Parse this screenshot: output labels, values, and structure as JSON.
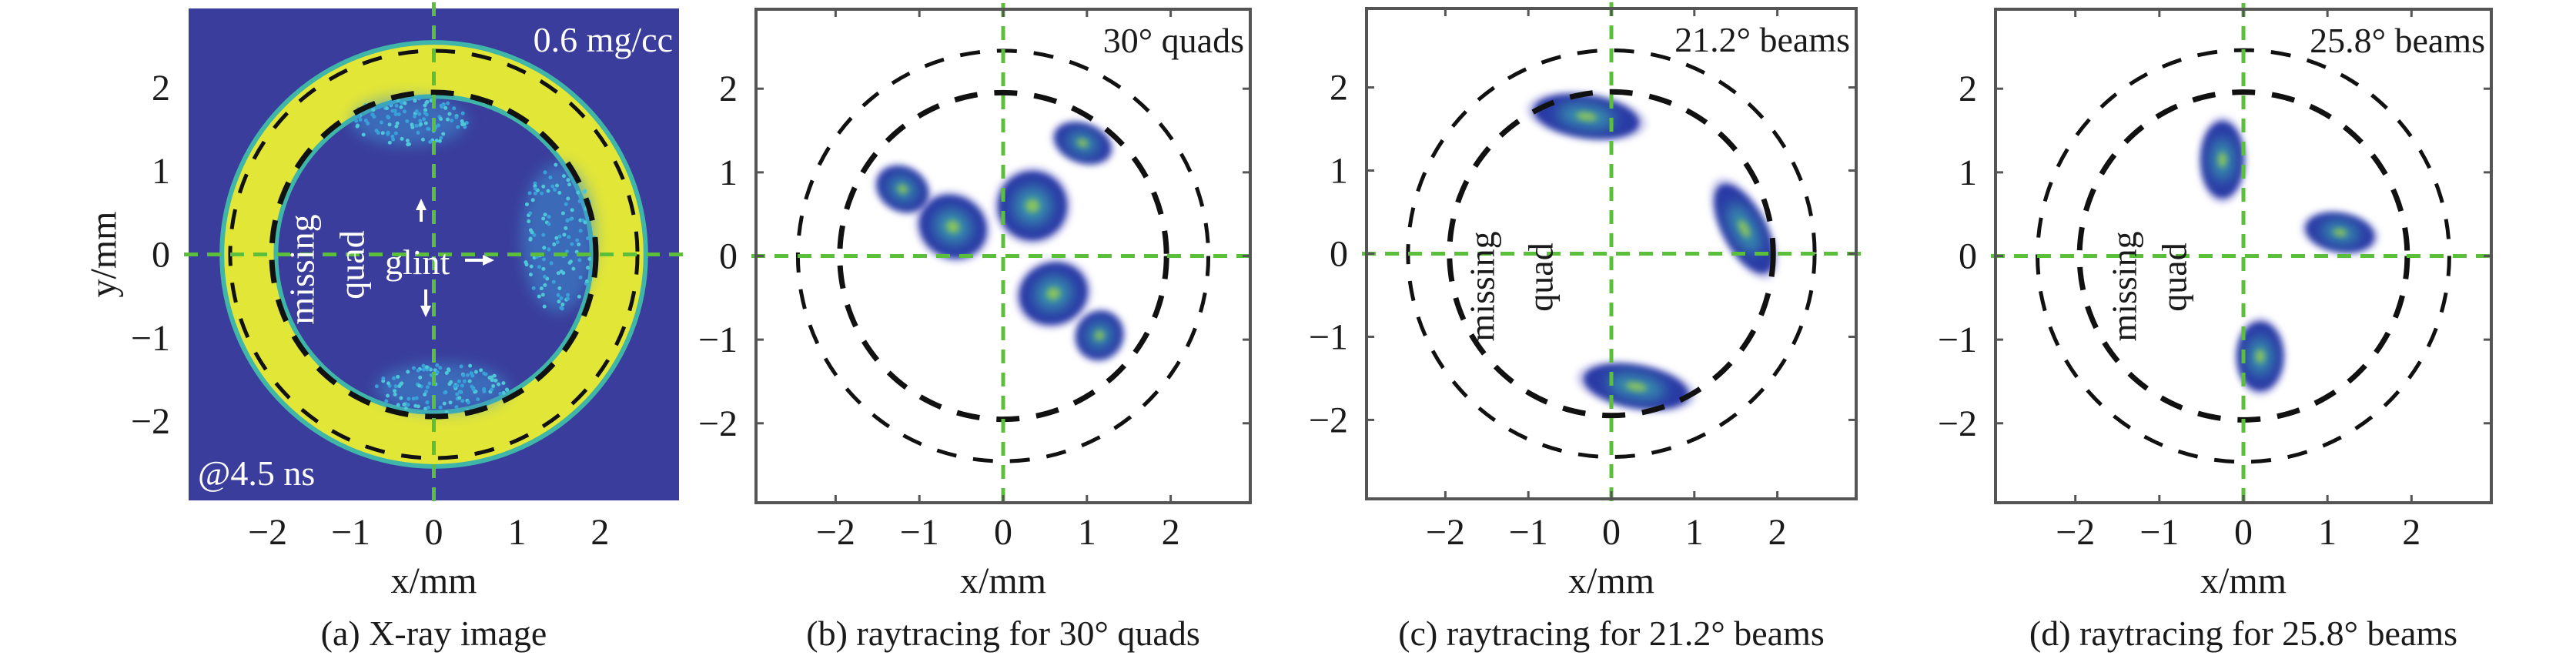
{
  "colors": {
    "xray_background": "#3a3d9b",
    "xray_ring": "#e2e637",
    "axis_guides": "#5cbf3c",
    "reference_circles": "#111111",
    "spot_core": "#9fd24a",
    "spot_mid": "#3aa6b0",
    "spot_edge": "#2c3aa6",
    "frame": "#555555"
  },
  "chart_data": [
    {
      "type": "heatmap",
      "caption": "(a) X-ray image",
      "xlabel": "x/mm",
      "ylabel": "y/mm",
      "xlim": [
        -2.95,
        2.95
      ],
      "ylim": [
        -2.95,
        2.95
      ],
      "xticks": [
        "−2",
        "−1",
        "0",
        "1",
        "2"
      ],
      "yticks": [
        "2",
        "1",
        "0",
        "−1",
        "−2"
      ],
      "xtick_values": [
        -2,
        -1,
        0,
        1,
        2
      ],
      "ytick_values": [
        2,
        1,
        0,
        -1,
        -2
      ],
      "reference_circle_radii": [
        1.95,
        2.45
      ],
      "guide_lines": {
        "x": 0,
        "y": 0
      },
      "annotations": {
        "top_right": "0.6 mg/cc",
        "bottom_left": "@4.5 ns",
        "glint": "glint",
        "missing": "missing",
        "quad": "quad"
      },
      "ring": {
        "inner_radius": 1.9,
        "outer_radius": 2.55
      },
      "bright_regions": [
        {
          "x": 1.5,
          "y": 0.2,
          "rx": 0.45,
          "ry": 0.9
        },
        {
          "x": -0.3,
          "y": 1.6,
          "rx": 0.7,
          "ry": 0.3
        },
        {
          "x": 0.1,
          "y": -1.6,
          "rx": 0.8,
          "ry": 0.3
        }
      ]
    },
    {
      "type": "scatter",
      "caption": "(b) raytracing for 30° quads",
      "xlabel": "x/mm",
      "xlim": [
        -2.95,
        2.95
      ],
      "ylim": [
        -2.95,
        2.95
      ],
      "xticks": [
        "−2",
        "−1",
        "0",
        "1",
        "2"
      ],
      "yticks": [
        "2",
        "1",
        "0",
        "−1",
        "−2"
      ],
      "xtick_values": [
        -2,
        -1,
        0,
        1,
        2
      ],
      "ytick_values": [
        2,
        1,
        0,
        -1,
        -2
      ],
      "reference_circle_radii": [
        1.95,
        2.45
      ],
      "guide_lines": {
        "x": 0,
        "y": 0
      },
      "annotations": {
        "top_right": "30° quads"
      },
      "spots": [
        {
          "x": -0.6,
          "y": 0.35,
          "rx": 0.45,
          "ry": 0.4,
          "angle": -30
        },
        {
          "x": -1.2,
          "y": 0.8,
          "rx": 0.35,
          "ry": 0.28,
          "angle": -30
        },
        {
          "x": 0.35,
          "y": 0.6,
          "rx": 0.45,
          "ry": 0.45,
          "angle": 50
        },
        {
          "x": 0.95,
          "y": 1.35,
          "rx": 0.38,
          "ry": 0.25,
          "angle": -20
        },
        {
          "x": 0.6,
          "y": -0.45,
          "rx": 0.45,
          "ry": 0.4,
          "angle": 20
        },
        {
          "x": 1.15,
          "y": -0.95,
          "rx": 0.32,
          "ry": 0.3,
          "angle": 60
        }
      ]
    },
    {
      "type": "scatter",
      "caption": "(c) raytracing for 21.2° beams",
      "xlabel": "x/mm",
      "xlim": [
        -2.95,
        2.95
      ],
      "ylim": [
        -2.95,
        2.95
      ],
      "xticks": [
        "−2",
        "−1",
        "0",
        "1",
        "2"
      ],
      "yticks": [
        "2",
        "1",
        "0",
        "−1",
        "−2"
      ],
      "xtick_values": [
        -2,
        -1,
        0,
        1,
        2
      ],
      "ytick_values": [
        2,
        1,
        0,
        -1,
        -2
      ],
      "reference_circle_radii": [
        1.95,
        2.45
      ],
      "guide_lines": {
        "x": 0,
        "y": 0
      },
      "annotations": {
        "top_right": "21.2° beams",
        "missing": "missing",
        "quad": "quad"
      },
      "spots": [
        {
          "x": -0.3,
          "y": 1.65,
          "rx": 0.7,
          "ry": 0.28,
          "angle": -8
        },
        {
          "x": 1.6,
          "y": 0.3,
          "rx": 0.65,
          "ry": 0.28,
          "angle": -62
        },
        {
          "x": 0.3,
          "y": -1.6,
          "rx": 0.7,
          "ry": 0.28,
          "angle": -10
        }
      ]
    },
    {
      "type": "scatter",
      "caption": "(d) raytracing for 25.8° beams",
      "xlabel": "x/mm",
      "xlim": [
        -2.95,
        2.95
      ],
      "ylim": [
        -2.95,
        2.95
      ],
      "xticks": [
        "−2",
        "−1",
        "0",
        "1",
        "2"
      ],
      "yticks": [
        "2",
        "1",
        "0",
        "−1",
        "−2"
      ],
      "xtick_values": [
        -2,
        -1,
        0,
        1,
        2
      ],
      "ytick_values": [
        2,
        1,
        0,
        -1,
        -2
      ],
      "reference_circle_radii": [
        1.95,
        2.45
      ],
      "guide_lines": {
        "x": 0,
        "y": 0
      },
      "annotations": {
        "top_right": "25.8° beams",
        "missing": "missing",
        "quad": "quad"
      },
      "spots": [
        {
          "x": -0.25,
          "y": 1.15,
          "rx": 0.28,
          "ry": 0.5,
          "angle": 0
        },
        {
          "x": 1.15,
          "y": 0.28,
          "rx": 0.45,
          "ry": 0.25,
          "angle": -10
        },
        {
          "x": 0.2,
          "y": -1.2,
          "rx": 0.3,
          "ry": 0.45,
          "angle": 0
        }
      ]
    }
  ]
}
